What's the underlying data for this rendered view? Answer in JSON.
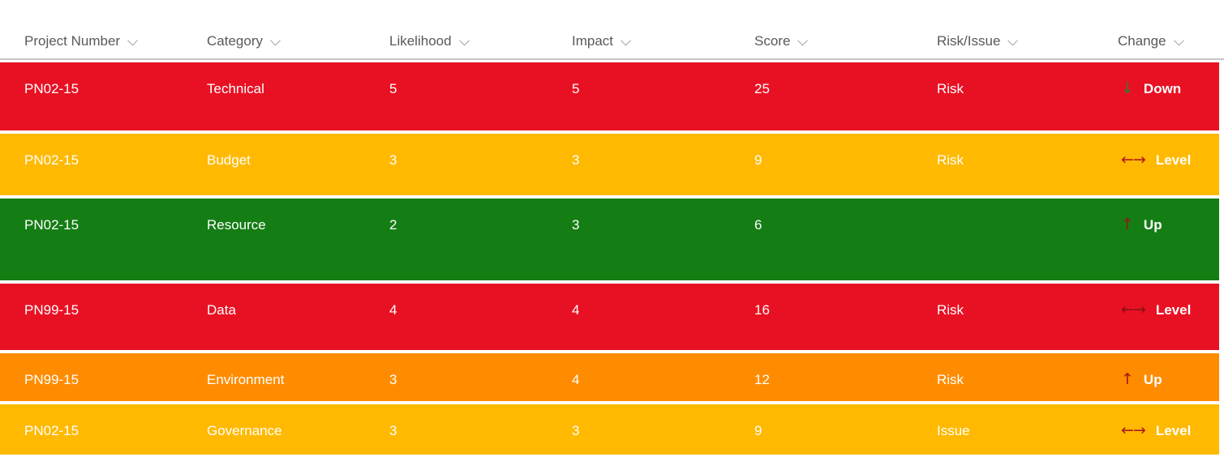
{
  "header": {
    "columns": [
      {
        "label": "Project Number"
      },
      {
        "label": "Category"
      },
      {
        "label": "Likelihood"
      },
      {
        "label": "Impact"
      },
      {
        "label": "Score"
      },
      {
        "label": "Risk/Issue"
      },
      {
        "label": "Change"
      }
    ]
  },
  "colors": {
    "severity_red": "#E81123",
    "severity_amber": "#FFB900",
    "severity_green": "#147D14",
    "severity_orange": "#FF8C00",
    "arrow_down_green": "#2E7D32",
    "arrow_up_red": "#9E1515",
    "arrow_level_red": "#B11A1A",
    "header_text": "#595959",
    "row_text": "#FFFFFF"
  },
  "rows": [
    {
      "project_number": "PN02-15",
      "category": "Technical",
      "likelihood": "5",
      "impact": "5",
      "score": "25",
      "risk_issue": "Risk",
      "change_label": "Down",
      "change_glyph": "↓",
      "bg": "#E81123",
      "icon_color": "#2E7D32"
    },
    {
      "project_number": "PN02-15",
      "category": "Budget",
      "likelihood": "3",
      "impact": "3",
      "score": "9",
      "risk_issue": "Risk",
      "change_label": "Level",
      "change_glyph": "←→",
      "bg": "#FFB900",
      "icon_color": "#B11A1A"
    },
    {
      "project_number": "PN02-15",
      "category": "Resource",
      "likelihood": "2",
      "impact": "3",
      "score": "6",
      "risk_issue": "",
      "change_label": "Up",
      "change_glyph": "↑",
      "bg": "#147D14",
      "icon_color": "#9E1515"
    },
    {
      "project_number": "PN99-15",
      "category": "Data",
      "likelihood": "4",
      "impact": "4",
      "score": "16",
      "risk_issue": "Risk",
      "change_label": "Level",
      "change_glyph": "←→",
      "bg": "#E81123",
      "icon_color": "#8A1016"
    },
    {
      "project_number": "PN99-15",
      "category": "Environment",
      "likelihood": "3",
      "impact": "4",
      "score": "12",
      "risk_issue": "Risk",
      "change_label": "Up",
      "change_glyph": "↑",
      "bg": "#FF8C00",
      "icon_color": "#9E1515"
    },
    {
      "project_number": "PN02-15",
      "category": "Governance",
      "likelihood": "3",
      "impact": "3",
      "score": "9",
      "risk_issue": "Issue",
      "change_label": "Level",
      "change_glyph": "←→",
      "bg": "#FFB900",
      "icon_color": "#B11A1A"
    }
  ]
}
